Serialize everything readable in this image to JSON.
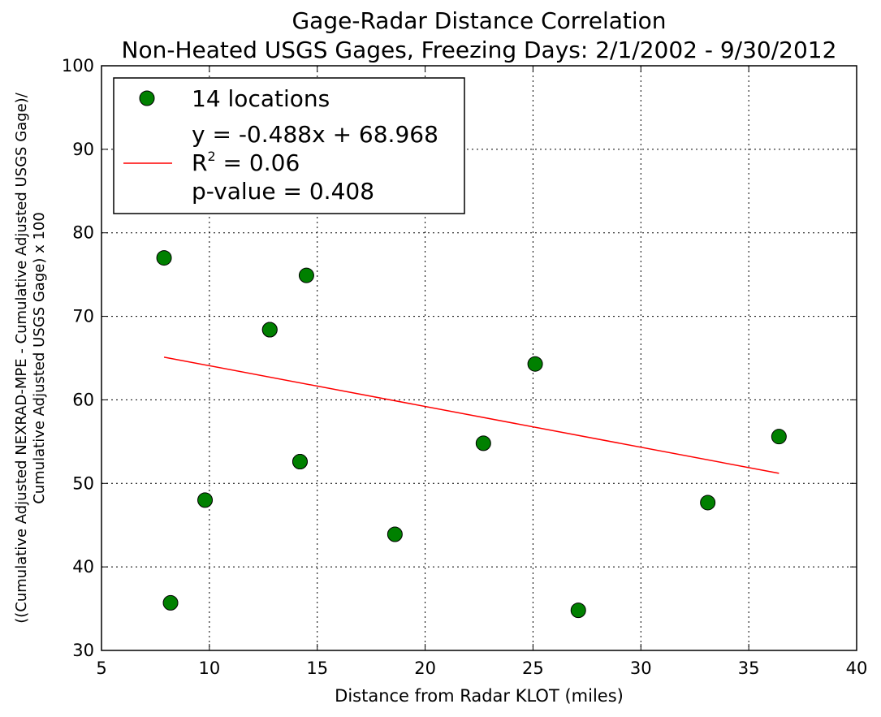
{
  "chart_data": {
    "type": "scatter",
    "title": [
      "Gage-Radar Distance Correlation",
      "Non-Heated USGS Gages, Freezing Days: 2/1/2002 - 9/30/2012"
    ],
    "xlabel": "Distance from Radar KLOT (miles)",
    "ylabel": [
      "((Cumulative Adjusted NEXRAD-MPE - Cumulative Adjusted USGS Gage)/",
      "Cumulative Adjusted USGS Gage) x 100"
    ],
    "xlim": [
      5,
      40
    ],
    "ylim": [
      30,
      100
    ],
    "xticks": [
      5,
      10,
      15,
      20,
      25,
      30,
      35,
      40
    ],
    "yticks": [
      30,
      40,
      50,
      60,
      70,
      80,
      90,
      100
    ],
    "grid": true,
    "legend_position": "top-left",
    "series": [
      {
        "name": "14 locations",
        "kind": "scatter",
        "color": "#008000",
        "edge_color": "#000000",
        "points": [
          [
            7.9,
            77.0
          ],
          [
            8.2,
            35.7
          ],
          [
            9.8,
            48.0
          ],
          [
            12.8,
            68.4
          ],
          [
            14.2,
            52.6
          ],
          [
            14.5,
            74.9
          ],
          [
            18.6,
            43.9
          ],
          [
            22.7,
            54.8
          ],
          [
            25.1,
            64.3
          ],
          [
            27.1,
            34.8
          ],
          [
            33.1,
            47.7
          ],
          [
            36.4,
            55.6
          ],
          [
            14.2,
            52.6
          ],
          [
            12.8,
            68.4
          ]
        ]
      },
      {
        "name": "y = -0.488x + 68.968",
        "kind": "line",
        "color": "#ff0000",
        "slope": -0.488,
        "intercept": 68.968,
        "x_range": [
          7.9,
          36.4
        ]
      }
    ],
    "legend": {
      "marker_label": "14 locations",
      "line_labels": [
        "y = -0.488x + 68.968",
        "R",
        "2",
        " = 0.06",
        "p-value = 0.408"
      ]
    }
  }
}
